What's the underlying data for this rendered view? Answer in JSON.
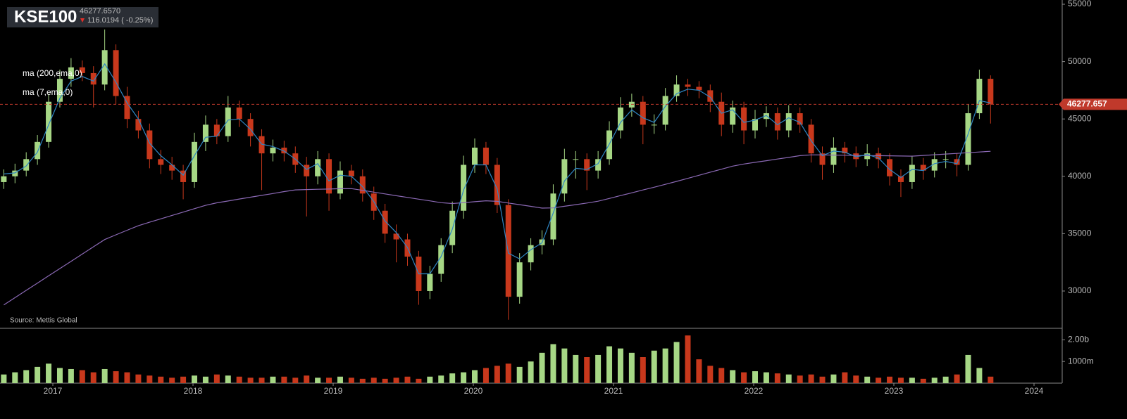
{
  "chart_data": {
    "type": "candlestick",
    "title": "KSE100",
    "price_text": "46277.6570",
    "change_text": "116.0194 ( -0.25%)",
    "source": "Source: Mettis Global",
    "up_color": "#a6d785",
    "down_color": "#c8381c",
    "last_price": 46277.657,
    "last_price_color": "#c0392b",
    "xlim": [
      2016.623,
      2024.201
    ],
    "xticks": [
      2017,
      2018,
      2019,
      2020,
      2021,
      2022,
      2023,
      2024
    ],
    "ylim": [
      26750,
      55370
    ],
    "yticks": [
      55000,
      50000,
      45000,
      40000,
      35000,
      30000
    ],
    "y2lim": [
      0,
      2530
    ],
    "y2ticks": [
      {
        "value": 2000,
        "label": "2.00b"
      },
      {
        "value": 1000,
        "label": "1000m"
      }
    ],
    "x": [
      2016.65,
      2016.73,
      2016.81,
      2016.89,
      2016.97,
      2017.05,
      2017.13,
      2017.21,
      2017.29,
      2017.37,
      2017.45,
      2017.53,
      2017.61,
      2017.69,
      2017.77,
      2017.85,
      2017.93,
      2018.01,
      2018.09,
      2018.17,
      2018.25,
      2018.33,
      2018.41,
      2018.49,
      2018.57,
      2018.65,
      2018.73,
      2018.81,
      2018.89,
      2018.97,
      2019.05,
      2019.13,
      2019.21,
      2019.29,
      2019.37,
      2019.45,
      2019.53,
      2019.61,
      2019.69,
      2019.77,
      2019.85,
      2019.93,
      2020.01,
      2020.09,
      2020.17,
      2020.25,
      2020.33,
      2020.41,
      2020.49,
      2020.57,
      2020.65,
      2020.73,
      2020.81,
      2020.89,
      2020.97,
      2021.05,
      2021.13,
      2021.21,
      2021.29,
      2021.37,
      2021.45,
      2021.53,
      2021.61,
      2021.69,
      2021.77,
      2021.85,
      2021.93,
      2022.01,
      2022.09,
      2022.17,
      2022.25,
      2022.33,
      2022.41,
      2022.49,
      2022.57,
      2022.65,
      2022.73,
      2022.81,
      2022.89,
      2022.97,
      2023.05,
      2023.13,
      2023.21,
      2023.29,
      2023.37,
      2023.45,
      2023.53,
      2023.61,
      2023.69
    ],
    "open": [
      39500,
      40000,
      40500,
      41500,
      43000,
      46500,
      48500,
      49500,
      49000,
      48000,
      51000,
      47000,
      45000,
      44000,
      41500,
      41000,
      40500,
      39500,
      43000,
      44500,
      43500,
      46000,
      45000,
      43500,
      42000,
      42500,
      42000,
      41000,
      40000,
      41500,
      38500,
      40500,
      40000,
      38500,
      37000,
      35000,
      34500,
      33000,
      30000,
      31500,
      34000,
      37000,
      41000,
      42500,
      41000,
      37500,
      29500,
      32500,
      34000,
      34500,
      38500,
      41500,
      41500,
      40500,
      41500,
      44000,
      46000,
      46500,
      44500,
      44500,
      47000,
      48000,
      47800,
      47500,
      46500,
      44500,
      46000,
      44000,
      45000,
      45500,
      44000,
      45500,
      44500,
      42000,
      41000,
      42500,
      42000,
      41500,
      42000,
      41500,
      40000,
      39500,
      41000,
      40500,
      41500,
      41500,
      41000,
      45500,
      48500
    ],
    "high": [
      40600,
      41100,
      42100,
      43600,
      47200,
      49300,
      50300,
      50100,
      49600,
      52800,
      51500,
      47800,
      45700,
      44600,
      42300,
      41700,
      41000,
      43800,
      45300,
      45000,
      47000,
      46600,
      45500,
      44100,
      43200,
      43100,
      42600,
      41700,
      42200,
      42000,
      41300,
      41000,
      40600,
      39100,
      37600,
      35800,
      35000,
      33500,
      32200,
      34600,
      37800,
      41800,
      43300,
      43000,
      41600,
      38000,
      33300,
      34600,
      35300,
      39300,
      42400,
      42200,
      42000,
      42200,
      44800,
      46900,
      47200,
      47000,
      45400,
      47700,
      48800,
      48500,
      48300,
      48000,
      47300,
      46600,
      46500,
      45800,
      46100,
      46000,
      46200,
      46000,
      45000,
      42600,
      43400,
      43000,
      42600,
      42800,
      42500,
      42000,
      40600,
      41800,
      41600,
      42100,
      42200,
      42000,
      46300,
      49300,
      48800
    ],
    "low": [
      38900,
      39400,
      40000,
      41000,
      42500,
      46000,
      47800,
      48300,
      46000,
      47500,
      46300,
      44200,
      43300,
      40700,
      40200,
      39700,
      38000,
      39000,
      42200,
      42800,
      43000,
      44300,
      42600,
      38800,
      41300,
      41300,
      40300,
      36500,
      39300,
      37000,
      38000,
      39300,
      37800,
      36200,
      34200,
      32500,
      32200,
      28800,
      29300,
      30800,
      33300,
      36300,
      40300,
      40200,
      36800,
      27500,
      28900,
      31800,
      33200,
      34000,
      37800,
      39800,
      38800,
      39800,
      41000,
      43300,
      45200,
      42800,
      43700,
      44000,
      46500,
      47000,
      46800,
      45600,
      43500,
      43800,
      42800,
      43300,
      44300,
      43200,
      43400,
      43800,
      41200,
      39700,
      40300,
      41200,
      40800,
      40900,
      40700,
      39200,
      38200,
      38900,
      39700,
      39900,
      40700,
      40000,
      40500,
      45000,
      44600
    ],
    "close": [
      40000,
      40500,
      41500,
      43000,
      46500,
      48500,
      49500,
      49000,
      48000,
      51000,
      47000,
      45000,
      44000,
      41500,
      41000,
      40500,
      39500,
      43000,
      44500,
      43500,
      46000,
      45000,
      43500,
      42000,
      42500,
      42000,
      41000,
      40000,
      41500,
      38500,
      40500,
      40000,
      38500,
      37000,
      35000,
      34500,
      33000,
      30000,
      31500,
      34000,
      37000,
      41000,
      42500,
      41000,
      37500,
      29500,
      32500,
      34000,
      34500,
      38500,
      41500,
      41500,
      40500,
      41500,
      44000,
      46000,
      46500,
      44500,
      44500,
      47000,
      48000,
      47800,
      47500,
      46500,
      44500,
      46000,
      44000,
      45000,
      45500,
      44000,
      45500,
      44500,
      42000,
      41000,
      42500,
      42000,
      41500,
      42000,
      41500,
      40000,
      39500,
      41000,
      40500,
      41500,
      41500,
      41000,
      45500,
      48500,
      46277.657
    ],
    "volume": [
      400,
      500,
      600,
      750,
      900,
      700,
      650,
      600,
      500,
      650,
      550,
      500,
      400,
      350,
      300,
      250,
      300,
      350,
      300,
      400,
      350,
      300,
      250,
      250,
      300,
      300,
      250,
      350,
      250,
      250,
      300,
      250,
      200,
      250,
      200,
      250,
      300,
      200,
      300,
      350,
      450,
      500,
      600,
      700,
      800,
      900,
      750,
      1000,
      1400,
      1800,
      1600,
      1300,
      1200,
      1300,
      1700,
      1600,
      1400,
      1200,
      1500,
      1600,
      1900,
      2200,
      1100,
      800,
      700,
      600,
      500,
      550,
      500,
      450,
      400,
      350,
      400,
      300,
      400,
      500,
      350,
      300,
      250,
      300,
      250,
      250,
      200,
      250,
      300,
      400,
      1300,
      700,
      300
    ],
    "series": [
      {
        "name": "ma (200,ema,0)",
        "color": "#8b69b5",
        "values": [
          28790,
          29420,
          30060,
          30690,
          31330,
          31960,
          32590,
          33220,
          33860,
          34490,
          34900,
          35300,
          35690,
          36000,
          36290,
          36590,
          36880,
          37180,
          37470,
          37690,
          37850,
          38020,
          38180,
          38340,
          38500,
          38670,
          38820,
          38850,
          38870,
          38890,
          38920,
          38930,
          38780,
          38620,
          38470,
          38310,
          38160,
          38010,
          37860,
          37700,
          37630,
          37700,
          37790,
          37870,
          37820,
          37670,
          37530,
          37380,
          37230,
          37250,
          37390,
          37530,
          37670,
          37830,
          38070,
          38320,
          38560,
          38810,
          39050,
          39300,
          39560,
          39820,
          40090,
          40360,
          40620,
          40890,
          41070,
          41220,
          41360,
          41510,
          41650,
          41800,
          41870,
          41860,
          41850,
          41840,
          41820,
          41810,
          41800,
          41790,
          41770,
          41760,
          41820,
          41880,
          41940,
          42000,
          42060,
          42120,
          42180
        ]
      },
      {
        "name": "ma (7,ema,0)",
        "color": "#2f86c4",
        "values": [
          40200,
          40300,
          40900,
          42100,
          44500,
          46800,
          48300,
          48700,
          48300,
          49800,
          48200,
          46400,
          45000,
          42900,
          41800,
          41000,
          40100,
          41800,
          43400,
          43500,
          44900,
          45000,
          44100,
          42800,
          42600,
          42200,
          41500,
          40600,
          41100,
          39600,
          40100,
          40000,
          39100,
          37800,
          36100,
          35100,
          33800,
          31500,
          31500,
          33000,
          35400,
          38800,
          41000,
          41000,
          38900,
          33300,
          32800,
          33600,
          34200,
          36800,
          39600,
          40700,
          40600,
          41100,
          42800,
          44700,
          45800,
          45100,
          44700,
          46100,
          47200,
          47600,
          47500,
          46900,
          45500,
          45800,
          44700,
          44900,
          45300,
          44500,
          45100,
          44700,
          43100,
          41800,
          42200,
          42100,
          41700,
          41900,
          41600,
          40600,
          39900,
          40600,
          40500,
          41100,
          41300,
          41100,
          43700,
          46600,
          46400
        ]
      }
    ]
  }
}
